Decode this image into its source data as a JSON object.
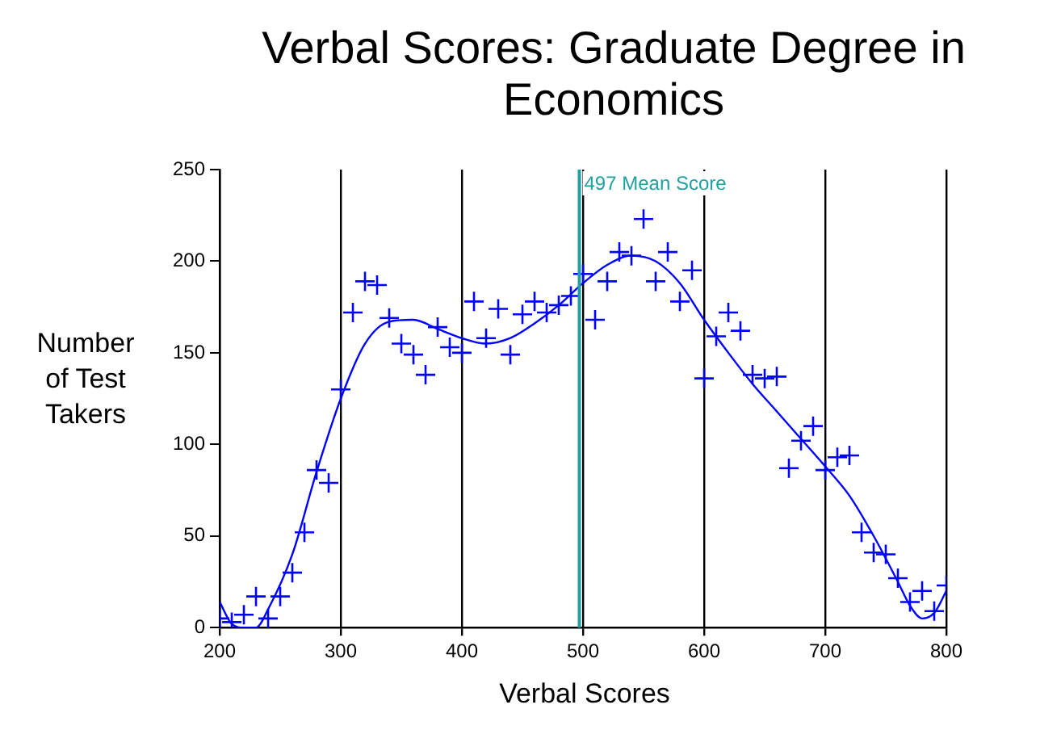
{
  "chart_data": {
    "type": "scatter",
    "title": "Verbal Scores: Graduate Degree in Economics",
    "xlabel": "Verbal Scores",
    "ylabel": "Number of Test Takers",
    "series": [
      {
        "color": "#0000ff",
        "marker": "cross",
        "x": [
          200,
          210,
          220,
          230,
          240,
          250,
          260,
          270,
          280,
          290,
          300,
          310,
          320,
          330,
          340,
          350,
          360,
          370,
          380,
          390,
          400,
          410,
          420,
          430,
          440,
          450,
          460,
          470,
          480,
          490,
          500,
          510,
          520,
          530,
          540,
          550,
          560,
          570,
          580,
          590,
          600,
          610,
          620,
          630,
          640,
          650,
          660,
          670,
          680,
          690,
          700,
          710,
          720,
          730,
          740,
          750,
          760,
          770,
          780,
          790,
          800
        ],
        "values": [
          5,
          3,
          7,
          17,
          5,
          17,
          30,
          52,
          86,
          79,
          130,
          172,
          189,
          187,
          169,
          155,
          149,
          138,
          164,
          153,
          150,
          178,
          158,
          174,
          149,
          171,
          178,
          172,
          176,
          181,
          193,
          168,
          189,
          205,
          203,
          223,
          189,
          205,
          178,
          195,
          136,
          159,
          172,
          162,
          138,
          136,
          137,
          87,
          102,
          110,
          86,
          93,
          94,
          52,
          41,
          40,
          27,
          14,
          20,
          9,
          23
        ]
      },
      {
        "type": "line",
        "color": "#0000ff",
        "marker": "none",
        "x": [
          200,
          210,
          220,
          230,
          240,
          260,
          280,
          300,
          320,
          340,
          360,
          380,
          400,
          420,
          440,
          460,
          480,
          500,
          520,
          540,
          560,
          580,
          600,
          620,
          640,
          660,
          680,
          700,
          720,
          740,
          760,
          770,
          780,
          790,
          800
        ],
        "values": [
          14,
          2,
          0,
          0,
          10,
          40,
          85,
          125,
          155,
          167,
          168,
          163,
          158,
          155,
          158,
          166,
          176,
          188,
          198,
          203,
          200,
          188,
          168,
          150,
          133,
          118,
          103,
          88,
          72,
          50,
          25,
          12,
          5,
          8,
          20
        ]
      }
    ],
    "xlim": [
      200,
      800
    ],
    "xticks": [
      200,
      300,
      400,
      500,
      600,
      700,
      800
    ],
    "ylim": [
      0,
      250
    ],
    "yticks": [
      0,
      50,
      100,
      150,
      200,
      250
    ],
    "grid": "x",
    "legend": false,
    "ref_lines": [
      {
        "axis": "x",
        "value": 497,
        "label": "497 Mean Score",
        "color": "#20a0a0"
      }
    ]
  }
}
